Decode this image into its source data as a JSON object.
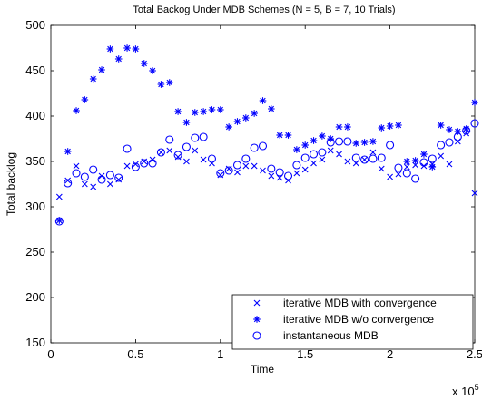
{
  "chart_data": {
    "type": "scatter",
    "title": "Total Backog Under MDB Schemes (N = 5, B = 7, 10 Trials)",
    "xlabel": "Time",
    "ylabel": "Total backlog",
    "x_multiplier_label": "x 10",
    "x_multiplier_exponent": "5",
    "xlim": [
      0,
      250000
    ],
    "ylim": [
      150,
      500
    ],
    "x_ticks": [
      0,
      50000,
      100000,
      150000,
      200000,
      250000
    ],
    "x_tick_labels": [
      "0",
      "0.5",
      "1",
      "1.5",
      "2",
      "2.5"
    ],
    "y_ticks": [
      150,
      200,
      250,
      300,
      350,
      400,
      450,
      500
    ],
    "y_tick_labels": [
      "150",
      "200",
      "250",
      "300",
      "350",
      "400",
      "450",
      "500"
    ],
    "grid": false,
    "legend_position": "bottom-right",
    "marker_color": "#0000ff",
    "series": [
      {
        "name": "iterative MDB with convergence",
        "marker": "x",
        "points": [
          [
            5000,
            311
          ],
          [
            10000,
            329
          ],
          [
            15000,
            345
          ],
          [
            20000,
            325
          ],
          [
            25000,
            322
          ],
          [
            30000,
            334
          ],
          [
            35000,
            325
          ],
          [
            40000,
            330
          ],
          [
            45000,
            345
          ],
          [
            50000,
            347
          ],
          [
            55000,
            350
          ],
          [
            60000,
            352
          ],
          [
            65000,
            360
          ],
          [
            70000,
            362
          ],
          [
            75000,
            355
          ],
          [
            80000,
            350
          ],
          [
            85000,
            362
          ],
          [
            90000,
            352
          ],
          [
            95000,
            348
          ],
          [
            100000,
            335
          ],
          [
            105000,
            342
          ],
          [
            110000,
            338
          ],
          [
            115000,
            345
          ],
          [
            120000,
            345
          ],
          [
            125000,
            340
          ],
          [
            130000,
            334
          ],
          [
            135000,
            332
          ],
          [
            140000,
            329
          ],
          [
            145000,
            337
          ],
          [
            150000,
            341
          ],
          [
            155000,
            348
          ],
          [
            160000,
            352
          ],
          [
            165000,
            362
          ],
          [
            170000,
            358
          ],
          [
            175000,
            350
          ],
          [
            180000,
            348
          ],
          [
            185000,
            352
          ],
          [
            190000,
            360
          ],
          [
            195000,
            342
          ],
          [
            200000,
            333
          ],
          [
            205000,
            336
          ],
          [
            210000,
            344
          ],
          [
            215000,
            346
          ],
          [
            220000,
            345
          ],
          [
            225000,
            347
          ],
          [
            230000,
            356
          ],
          [
            235000,
            347
          ],
          [
            240000,
            372
          ],
          [
            245000,
            381
          ],
          [
            250000,
            315
          ]
        ]
      },
      {
        "name": "iterative MDB w/o convergence",
        "marker": "asterisk",
        "points": [
          [
            5000,
            285
          ],
          [
            10000,
            361
          ],
          [
            15000,
            406
          ],
          [
            20000,
            418
          ],
          [
            25000,
            441
          ],
          [
            30000,
            451
          ],
          [
            35000,
            474
          ],
          [
            40000,
            463
          ],
          [
            45000,
            475
          ],
          [
            50000,
            474
          ],
          [
            55000,
            458
          ],
          [
            60000,
            450
          ],
          [
            65000,
            435
          ],
          [
            70000,
            437
          ],
          [
            75000,
            405
          ],
          [
            80000,
            393
          ],
          [
            85000,
            404
          ],
          [
            90000,
            405
          ],
          [
            95000,
            407
          ],
          [
            100000,
            407
          ],
          [
            105000,
            388
          ],
          [
            110000,
            394
          ],
          [
            115000,
            398
          ],
          [
            120000,
            403
          ],
          [
            125000,
            417
          ],
          [
            130000,
            408
          ],
          [
            135000,
            379
          ],
          [
            140000,
            379
          ],
          [
            145000,
            363
          ],
          [
            150000,
            368
          ],
          [
            155000,
            373
          ],
          [
            160000,
            378
          ],
          [
            165000,
            375
          ],
          [
            170000,
            388
          ],
          [
            175000,
            388
          ],
          [
            180000,
            370
          ],
          [
            185000,
            371
          ],
          [
            190000,
            372
          ],
          [
            195000,
            387
          ],
          [
            200000,
            389
          ],
          [
            205000,
            390
          ],
          [
            210000,
            350
          ],
          [
            215000,
            351
          ],
          [
            220000,
            358
          ],
          [
            225000,
            344
          ],
          [
            230000,
            390
          ],
          [
            235000,
            385
          ],
          [
            240000,
            383
          ],
          [
            245000,
            386
          ],
          [
            250000,
            415
          ]
        ]
      },
      {
        "name": "instantaneous MDB",
        "marker": "circle",
        "points": [
          [
            5000,
            284
          ],
          [
            10000,
            326
          ],
          [
            15000,
            337
          ],
          [
            20000,
            333
          ],
          [
            25000,
            341
          ],
          [
            30000,
            330
          ],
          [
            35000,
            335
          ],
          [
            40000,
            332
          ],
          [
            45000,
            364
          ],
          [
            50000,
            344
          ],
          [
            55000,
            348
          ],
          [
            60000,
            348
          ],
          [
            65000,
            360
          ],
          [
            70000,
            374
          ],
          [
            75000,
            357
          ],
          [
            80000,
            366
          ],
          [
            85000,
            376
          ],
          [
            90000,
            377
          ],
          [
            95000,
            353
          ],
          [
            100000,
            337
          ],
          [
            105000,
            340
          ],
          [
            110000,
            346
          ],
          [
            115000,
            353
          ],
          [
            120000,
            365
          ],
          [
            125000,
            367
          ],
          [
            130000,
            342
          ],
          [
            135000,
            338
          ],
          [
            140000,
            334
          ],
          [
            145000,
            346
          ],
          [
            150000,
            354
          ],
          [
            155000,
            358
          ],
          [
            160000,
            360
          ],
          [
            165000,
            371
          ],
          [
            170000,
            372
          ],
          [
            175000,
            372
          ],
          [
            180000,
            354
          ],
          [
            185000,
            352
          ],
          [
            190000,
            353
          ],
          [
            195000,
            354
          ],
          [
            200000,
            368
          ],
          [
            205000,
            343
          ],
          [
            210000,
            337
          ],
          [
            215000,
            331
          ],
          [
            220000,
            349
          ],
          [
            225000,
            353
          ],
          [
            230000,
            368
          ],
          [
            235000,
            371
          ],
          [
            240000,
            377
          ],
          [
            245000,
            384
          ],
          [
            250000,
            392
          ]
        ]
      }
    ]
  }
}
